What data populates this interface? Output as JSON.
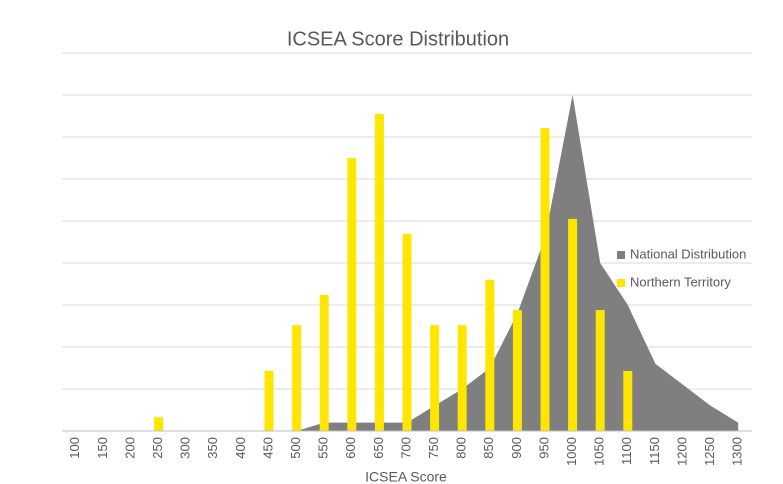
{
  "chart_data": {
    "type": "bar",
    "title": "ICSEA Score Distribution",
    "x_label": "ICSEA Score",
    "categories": [
      "100",
      "150",
      "200",
      "250",
      "300",
      "350",
      "400",
      "450",
      "500",
      "550",
      "600",
      "650",
      "700",
      "750",
      "800",
      "850",
      "900",
      "950",
      "1000",
      "1050",
      "1100",
      "1150",
      "1200",
      "1250",
      "1300"
    ],
    "series": [
      {
        "name": "National Distribution",
        "color": "#7f7f7f",
        "type": "area",
        "values": [
          0,
          0,
          0,
          0,
          0,
          0,
          0,
          0,
          0,
          0.2,
          0.2,
          0.2,
          0.2,
          0.6,
          1.0,
          1.5,
          2.8,
          4.6,
          8.0,
          4.0,
          3.0,
          1.6,
          1.1,
          0.6,
          0.2
        ]
      },
      {
        "name": "Northern Territory",
        "color": "#ffe600",
        "type": "bar",
        "values": [
          0,
          0,
          0,
          0.33,
          0,
          0,
          0,
          1.43,
          2.52,
          3.24,
          6.5,
          7.55,
          4.69,
          2.52,
          2.52,
          3.6,
          2.88,
          7.21,
          5.05,
          2.88,
          1.43,
          0,
          0,
          0,
          0
        ]
      }
    ],
    "ylim": [
      0,
      9
    ],
    "yticks": [
      0,
      1,
      2,
      3,
      4,
      5,
      6,
      7,
      8,
      9
    ],
    "grid": true,
    "legend": "right"
  }
}
